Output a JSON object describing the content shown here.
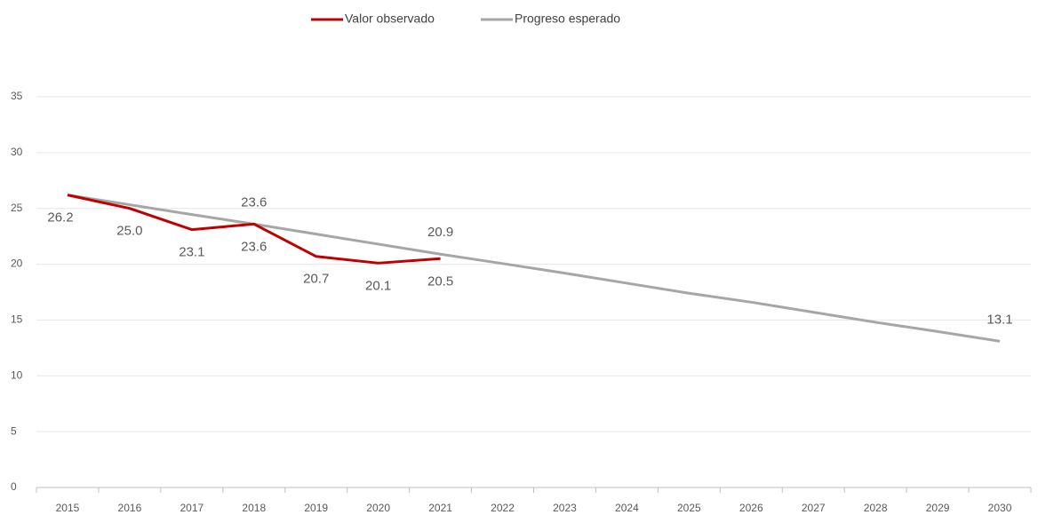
{
  "chart_data": {
    "type": "line",
    "categories": [
      "2015",
      "2016",
      "2017",
      "2018",
      "2019",
      "2020",
      "2021",
      "2022",
      "2023",
      "2024",
      "2025",
      "2026",
      "2027",
      "2028",
      "2029",
      "2030"
    ],
    "series": [
      {
        "name": "Valor observado",
        "color": "#c00000",
        "values": [
          26.2,
          25.0,
          23.1,
          23.6,
          20.7,
          20.1,
          20.5,
          null,
          null,
          null,
          null,
          null,
          null,
          null,
          null,
          null
        ],
        "value_labels": [
          "26.2",
          "25.0",
          "23.1",
          "23.6",
          "20.7",
          "20.1",
          "20.5",
          null,
          null,
          null,
          null,
          null,
          null,
          null,
          null,
          null
        ]
      },
      {
        "name": "Progreso esperado",
        "color": "#a6a6a6",
        "values": [
          26.2,
          25.33,
          24.45,
          23.6,
          22.7,
          21.8,
          20.9,
          20.06,
          19.2,
          18.3,
          17.4,
          16.6,
          15.7,
          14.8,
          13.97,
          13.1
        ],
        "value_labels": [
          null,
          null,
          null,
          "23.6",
          null,
          null,
          "20.9",
          null,
          null,
          null,
          null,
          null,
          null,
          null,
          null,
          "13.1"
        ]
      }
    ],
    "ylim": [
      0,
      35
    ],
    "yticks": [
      0,
      5,
      10,
      15,
      20,
      25,
      30,
      35
    ],
    "grid": true,
    "legend": "top"
  }
}
